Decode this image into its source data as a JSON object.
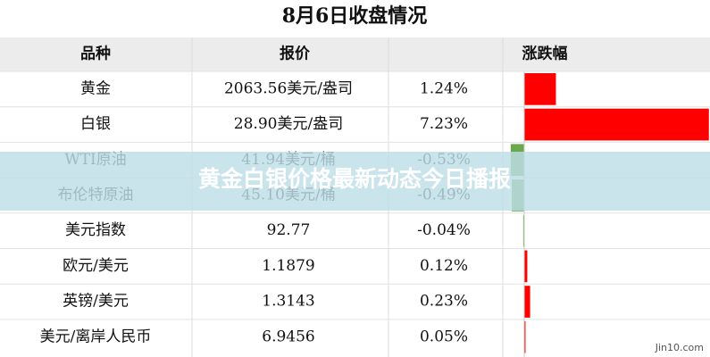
{
  "header": {
    "title": "8月6日收盘情况"
  },
  "table": {
    "columns": [
      "品种",
      "报价",
      "涨跌幅"
    ],
    "rows": [
      {
        "name": "黄金",
        "price": "2063.56美元/盎司",
        "change": 1.24,
        "change_label": "1.24%"
      },
      {
        "name": "白银",
        "price": "28.90美元/盎司",
        "change": 7.23,
        "change_label": "7.23%"
      },
      {
        "name": "WTI原油",
        "price": "41.94美元/桶",
        "change": -0.53,
        "change_label": "-0.53%"
      },
      {
        "name": "布伦特原油",
        "price": "45.10美元/桶",
        "change": -0.49,
        "change_label": "-0.49%"
      },
      {
        "name": "美元指数",
        "price": "92.77",
        "change": -0.04,
        "change_label": "-0.04%"
      },
      {
        "name": "欧元/美元",
        "price": "1.1879",
        "change": 0.12,
        "change_label": "0.12%"
      },
      {
        "name": "英镑/美元",
        "price": "1.3143",
        "change": 0.23,
        "change_label": "0.23%"
      },
      {
        "name": "美元/离岸人民币",
        "price": "6.9456",
        "change": 0.05,
        "change_label": "0.05%"
      }
    ]
  },
  "banner": "黄金白银价格最新动态今日播报",
  "watermark": "Jin10.com"
}
